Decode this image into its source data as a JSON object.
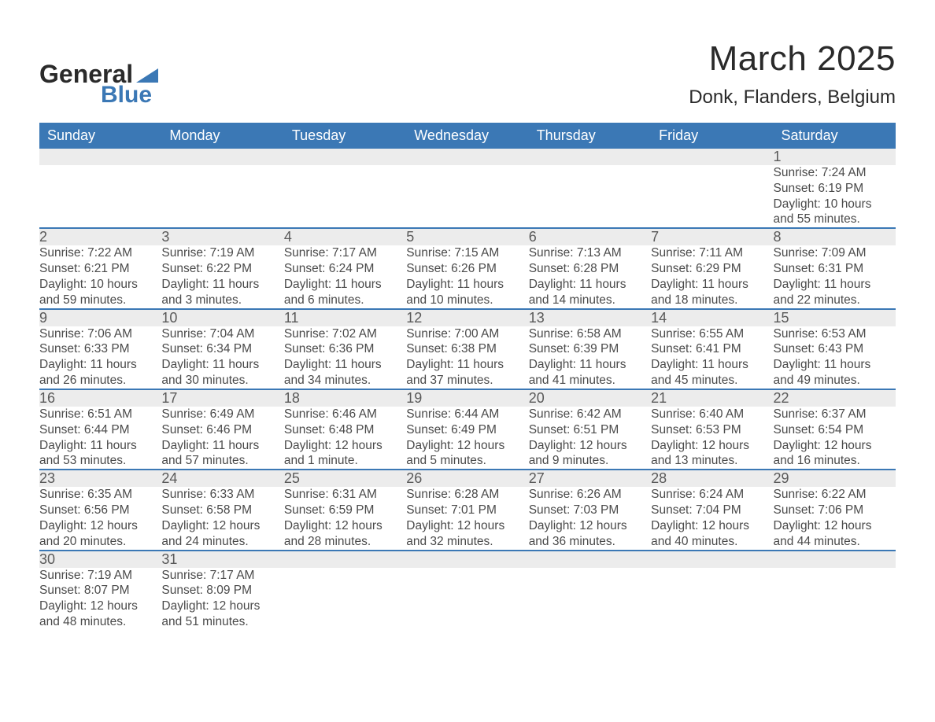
{
  "brand": {
    "word1": "General",
    "word2": "Blue",
    "accent_color": "#3b78b5"
  },
  "title": "March 2025",
  "location": "Donk, Flanders, Belgium",
  "colors": {
    "header_bg": "#3b78b5",
    "header_text": "#ffffff",
    "daynum_bg": "#ececec",
    "daynum_text": "#595959",
    "body_text": "#4a4a4a",
    "row_divider": "#3b78b5",
    "page_bg": "#ffffff"
  },
  "typography": {
    "title_fontsize_pt": 33,
    "location_fontsize_pt": 18,
    "header_fontsize_pt": 14,
    "daynum_fontsize_pt": 14,
    "cell_fontsize_pt": 12,
    "font_family": "Arial"
  },
  "weekdays": [
    "Sunday",
    "Monday",
    "Tuesday",
    "Wednesday",
    "Thursday",
    "Friday",
    "Saturday"
  ],
  "weeks": [
    [
      null,
      null,
      null,
      null,
      null,
      null,
      {
        "n": "1",
        "sunrise": "Sunrise: 7:24 AM",
        "sunset": "Sunset: 6:19 PM",
        "day1": "Daylight: 10 hours",
        "day2": "and 55 minutes."
      }
    ],
    [
      {
        "n": "2",
        "sunrise": "Sunrise: 7:22 AM",
        "sunset": "Sunset: 6:21 PM",
        "day1": "Daylight: 10 hours",
        "day2": "and 59 minutes."
      },
      {
        "n": "3",
        "sunrise": "Sunrise: 7:19 AM",
        "sunset": "Sunset: 6:22 PM",
        "day1": "Daylight: 11 hours",
        "day2": "and 3 minutes."
      },
      {
        "n": "4",
        "sunrise": "Sunrise: 7:17 AM",
        "sunset": "Sunset: 6:24 PM",
        "day1": "Daylight: 11 hours",
        "day2": "and 6 minutes."
      },
      {
        "n": "5",
        "sunrise": "Sunrise: 7:15 AM",
        "sunset": "Sunset: 6:26 PM",
        "day1": "Daylight: 11 hours",
        "day2": "and 10 minutes."
      },
      {
        "n": "6",
        "sunrise": "Sunrise: 7:13 AM",
        "sunset": "Sunset: 6:28 PM",
        "day1": "Daylight: 11 hours",
        "day2": "and 14 minutes."
      },
      {
        "n": "7",
        "sunrise": "Sunrise: 7:11 AM",
        "sunset": "Sunset: 6:29 PM",
        "day1": "Daylight: 11 hours",
        "day2": "and 18 minutes."
      },
      {
        "n": "8",
        "sunrise": "Sunrise: 7:09 AM",
        "sunset": "Sunset: 6:31 PM",
        "day1": "Daylight: 11 hours",
        "day2": "and 22 minutes."
      }
    ],
    [
      {
        "n": "9",
        "sunrise": "Sunrise: 7:06 AM",
        "sunset": "Sunset: 6:33 PM",
        "day1": "Daylight: 11 hours",
        "day2": "and 26 minutes."
      },
      {
        "n": "10",
        "sunrise": "Sunrise: 7:04 AM",
        "sunset": "Sunset: 6:34 PM",
        "day1": "Daylight: 11 hours",
        "day2": "and 30 minutes."
      },
      {
        "n": "11",
        "sunrise": "Sunrise: 7:02 AM",
        "sunset": "Sunset: 6:36 PM",
        "day1": "Daylight: 11 hours",
        "day2": "and 34 minutes."
      },
      {
        "n": "12",
        "sunrise": "Sunrise: 7:00 AM",
        "sunset": "Sunset: 6:38 PM",
        "day1": "Daylight: 11 hours",
        "day2": "and 37 minutes."
      },
      {
        "n": "13",
        "sunrise": "Sunrise: 6:58 AM",
        "sunset": "Sunset: 6:39 PM",
        "day1": "Daylight: 11 hours",
        "day2": "and 41 minutes."
      },
      {
        "n": "14",
        "sunrise": "Sunrise: 6:55 AM",
        "sunset": "Sunset: 6:41 PM",
        "day1": "Daylight: 11 hours",
        "day2": "and 45 minutes."
      },
      {
        "n": "15",
        "sunrise": "Sunrise: 6:53 AM",
        "sunset": "Sunset: 6:43 PM",
        "day1": "Daylight: 11 hours",
        "day2": "and 49 minutes."
      }
    ],
    [
      {
        "n": "16",
        "sunrise": "Sunrise: 6:51 AM",
        "sunset": "Sunset: 6:44 PM",
        "day1": "Daylight: 11 hours",
        "day2": "and 53 minutes."
      },
      {
        "n": "17",
        "sunrise": "Sunrise: 6:49 AM",
        "sunset": "Sunset: 6:46 PM",
        "day1": "Daylight: 11 hours",
        "day2": "and 57 minutes."
      },
      {
        "n": "18",
        "sunrise": "Sunrise: 6:46 AM",
        "sunset": "Sunset: 6:48 PM",
        "day1": "Daylight: 12 hours",
        "day2": "and 1 minute."
      },
      {
        "n": "19",
        "sunrise": "Sunrise: 6:44 AM",
        "sunset": "Sunset: 6:49 PM",
        "day1": "Daylight: 12 hours",
        "day2": "and 5 minutes."
      },
      {
        "n": "20",
        "sunrise": "Sunrise: 6:42 AM",
        "sunset": "Sunset: 6:51 PM",
        "day1": "Daylight: 12 hours",
        "day2": "and 9 minutes."
      },
      {
        "n": "21",
        "sunrise": "Sunrise: 6:40 AM",
        "sunset": "Sunset: 6:53 PM",
        "day1": "Daylight: 12 hours",
        "day2": "and 13 minutes."
      },
      {
        "n": "22",
        "sunrise": "Sunrise: 6:37 AM",
        "sunset": "Sunset: 6:54 PM",
        "day1": "Daylight: 12 hours",
        "day2": "and 16 minutes."
      }
    ],
    [
      {
        "n": "23",
        "sunrise": "Sunrise: 6:35 AM",
        "sunset": "Sunset: 6:56 PM",
        "day1": "Daylight: 12 hours",
        "day2": "and 20 minutes."
      },
      {
        "n": "24",
        "sunrise": "Sunrise: 6:33 AM",
        "sunset": "Sunset: 6:58 PM",
        "day1": "Daylight: 12 hours",
        "day2": "and 24 minutes."
      },
      {
        "n": "25",
        "sunrise": "Sunrise: 6:31 AM",
        "sunset": "Sunset: 6:59 PM",
        "day1": "Daylight: 12 hours",
        "day2": "and 28 minutes."
      },
      {
        "n": "26",
        "sunrise": "Sunrise: 6:28 AM",
        "sunset": "Sunset: 7:01 PM",
        "day1": "Daylight: 12 hours",
        "day2": "and 32 minutes."
      },
      {
        "n": "27",
        "sunrise": "Sunrise: 6:26 AM",
        "sunset": "Sunset: 7:03 PM",
        "day1": "Daylight: 12 hours",
        "day2": "and 36 minutes."
      },
      {
        "n": "28",
        "sunrise": "Sunrise: 6:24 AM",
        "sunset": "Sunset: 7:04 PM",
        "day1": "Daylight: 12 hours",
        "day2": "and 40 minutes."
      },
      {
        "n": "29",
        "sunrise": "Sunrise: 6:22 AM",
        "sunset": "Sunset: 7:06 PM",
        "day1": "Daylight: 12 hours",
        "day2": "and 44 minutes."
      }
    ],
    [
      {
        "n": "30",
        "sunrise": "Sunrise: 7:19 AM",
        "sunset": "Sunset: 8:07 PM",
        "day1": "Daylight: 12 hours",
        "day2": "and 48 minutes."
      },
      {
        "n": "31",
        "sunrise": "Sunrise: 7:17 AM",
        "sunset": "Sunset: 8:09 PM",
        "day1": "Daylight: 12 hours",
        "day2": "and 51 minutes."
      },
      null,
      null,
      null,
      null,
      null
    ]
  ]
}
